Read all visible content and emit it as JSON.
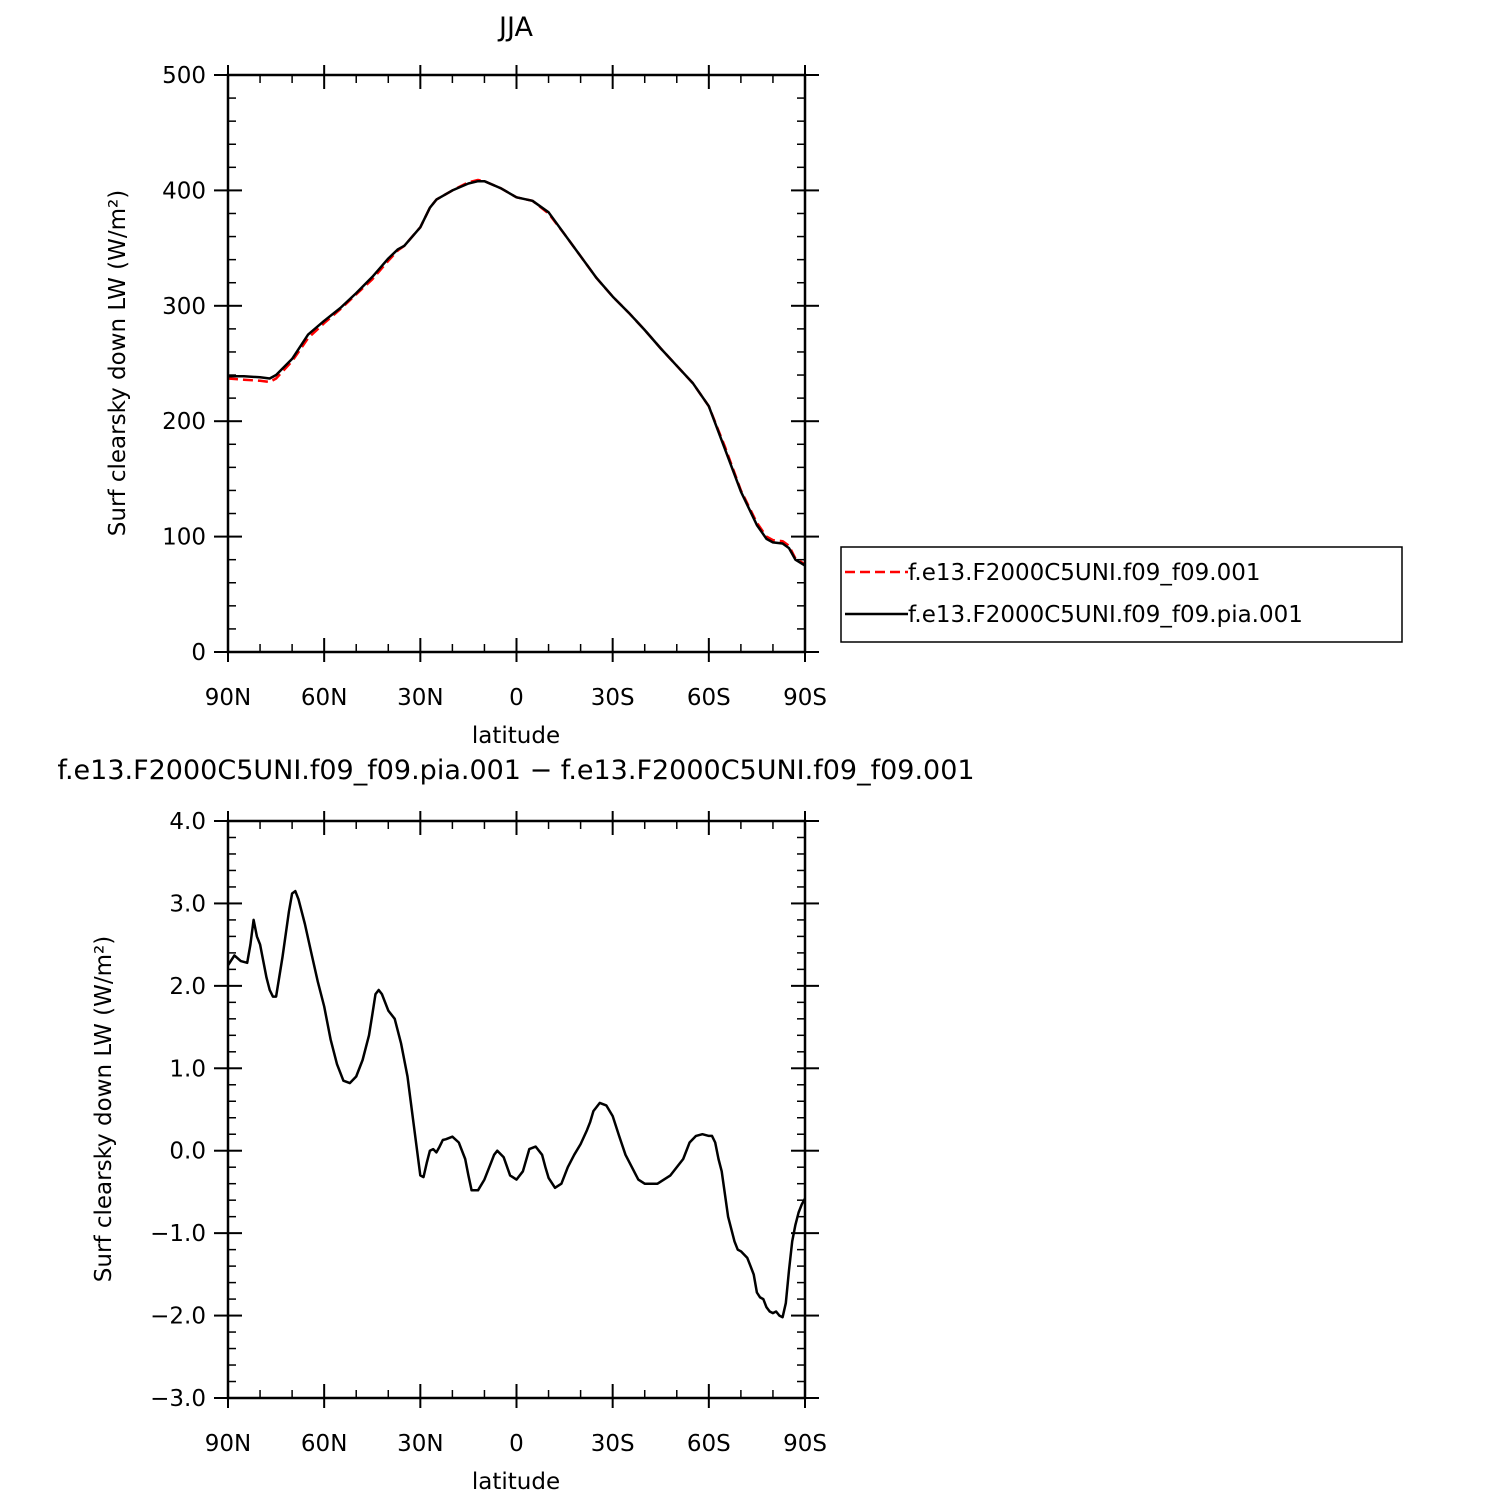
{
  "chart_data": [
    {
      "type": "line",
      "title": "JJA",
      "xlabel": "latitude",
      "ylabel": "Surf clearsky down LW (W/m²)",
      "xlim": [
        90,
        -90
      ],
      "ylim": [
        0,
        500
      ],
      "xticks": [
        90,
        60,
        30,
        0,
        -30,
        -60,
        -90
      ],
      "xtick_labels": [
        "90N",
        "60N",
        "30N",
        "0",
        "30S",
        "60S",
        "90S"
      ],
      "yticks": [
        0,
        100,
        200,
        300,
        400,
        500
      ],
      "ytick_labels": [
        "0",
        "100",
        "200",
        "300",
        "400",
        "500"
      ],
      "legend_position": "right",
      "series": [
        {
          "name": "f.e13.F2000C5UNI.f09_f09.001",
          "color": "#ff0000",
          "style": "dashed",
          "x": [
            90,
            85,
            80,
            77,
            75,
            70,
            65,
            60,
            55,
            50,
            45,
            40,
            37,
            35,
            30,
            27,
            25,
            20,
            15,
            12,
            10,
            5,
            0,
            -5,
            -10,
            -15,
            -20,
            -25,
            -30,
            -35,
            -40,
            -45,
            -50,
            -55,
            -60,
            -65,
            -70,
            -75,
            -78,
            -80,
            -83,
            -85,
            -87,
            -90
          ],
          "values": [
            237,
            236,
            235,
            234,
            237,
            252,
            272,
            285,
            297,
            310,
            323,
            339,
            348,
            352,
            368,
            385,
            392,
            400,
            407,
            409,
            408,
            402,
            394,
            391,
            380,
            362,
            343,
            324,
            308,
            294,
            279,
            263,
            248,
            233,
            213,
            178,
            140,
            112,
            100,
            97,
            96,
            92,
            81,
            76
          ]
        },
        {
          "name": "f.e13.F2000C5UNI.f09_f09.pia.001",
          "color": "#000000",
          "style": "solid",
          "x": [
            90,
            85,
            80,
            77,
            75,
            70,
            65,
            60,
            55,
            50,
            45,
            40,
            37,
            35,
            30,
            27,
            25,
            20,
            15,
            12,
            10,
            5,
            0,
            -5,
            -10,
            -15,
            -20,
            -25,
            -30,
            -35,
            -40,
            -45,
            -50,
            -55,
            -60,
            -65,
            -70,
            -75,
            -78,
            -80,
            -83,
            -85,
            -87,
            -90
          ],
          "values": [
            239,
            239,
            238,
            237,
            240,
            254,
            275,
            287,
            298,
            311,
            325,
            341,
            349,
            352,
            368,
            385,
            392,
            400,
            406,
            408,
            408,
            402,
            394,
            391,
            381,
            362,
            343,
            324,
            308,
            294,
            279,
            263,
            248,
            233,
            213,
            176,
            139,
            110,
            98,
            95,
            94,
            90,
            80,
            75
          ]
        }
      ]
    },
    {
      "type": "line",
      "title": "f.e13.F2000C5UNI.f09_f09.pia.001 − f.e13.F2000C5UNI.f09_f09.001",
      "xlabel": "latitude",
      "ylabel": "Surf clearsky down LW (W/m²)",
      "xlim": [
        90,
        -90
      ],
      "ylim": [
        -3.0,
        4.0
      ],
      "xticks": [
        90,
        60,
        30,
        0,
        -30,
        -60,
        -90
      ],
      "xtick_labels": [
        "90N",
        "60N",
        "30N",
        "0",
        "30S",
        "60S",
        "90S"
      ],
      "yticks": [
        -3.0,
        -2.0,
        -1.0,
        0.0,
        1.0,
        2.0,
        3.0,
        4.0
      ],
      "ytick_labels": [
        "−3.0",
        "−2.0",
        "−1.0",
        "0.0",
        "1.0",
        "2.0",
        "3.0",
        "4.0"
      ],
      "series": [
        {
          "color": "#000000",
          "style": "solid",
          "x": [
            90,
            88,
            86,
            84,
            83,
            82,
            81,
            80,
            79,
            78,
            77,
            76,
            75,
            73,
            71,
            70,
            69,
            68,
            66,
            64,
            62,
            60,
            58,
            56,
            54,
            52,
            50,
            48,
            46,
            45,
            44,
            43,
            42,
            40,
            38,
            36,
            34,
            33,
            32,
            30,
            29,
            28,
            27,
            26,
            25,
            24,
            23,
            22,
            20,
            18,
            16,
            15,
            14,
            12,
            10,
            8,
            7,
            6,
            4,
            2,
            0,
            -2,
            -4,
            -6,
            -8,
            -9,
            -10,
            -12,
            -14,
            -16,
            -18,
            -20,
            -22,
            -23,
            -24,
            -26,
            -28,
            -30,
            -32,
            -34,
            -36,
            -38,
            -40,
            -44,
            -48,
            -52,
            -54,
            -56,
            -58,
            -60,
            -61,
            -62,
            -63,
            -64,
            -66,
            -68,
            -69,
            -70,
            -72,
            -73,
            -74,
            -75,
            -76,
            -77,
            -78,
            -79,
            -80,
            -81,
            -82,
            -83,
            -84,
            -85,
            -86,
            -87,
            -88,
            -89,
            -90
          ],
          "values": [
            2.25,
            2.37,
            2.3,
            2.28,
            2.5,
            2.8,
            2.6,
            2.5,
            2.3,
            2.1,
            1.95,
            1.87,
            1.87,
            2.35,
            2.9,
            3.12,
            3.15,
            3.05,
            2.75,
            2.4,
            2.05,
            1.75,
            1.35,
            1.05,
            0.85,
            0.82,
            0.9,
            1.1,
            1.4,
            1.65,
            1.9,
            1.95,
            1.9,
            1.7,
            1.6,
            1.3,
            0.9,
            0.6,
            0.3,
            -0.3,
            -0.32,
            -0.15,
            0.0,
            0.02,
            -0.02,
            0.05,
            0.13,
            0.14,
            0.17,
            0.1,
            -0.1,
            -0.3,
            -0.48,
            -0.48,
            -0.35,
            -0.15,
            -0.05,
            0.0,
            -0.08,
            -0.3,
            -0.35,
            -0.25,
            0.02,
            0.05,
            -0.05,
            -0.2,
            -0.33,
            -0.45,
            -0.4,
            -0.2,
            -0.05,
            0.08,
            0.25,
            0.35,
            0.48,
            0.58,
            0.55,
            0.42,
            0.18,
            -0.05,
            -0.2,
            -0.35,
            -0.4,
            -0.4,
            -0.3,
            -0.1,
            0.1,
            0.18,
            0.2,
            0.18,
            0.18,
            0.1,
            -0.1,
            -0.25,
            -0.8,
            -1.1,
            -1.2,
            -1.22,
            -1.3,
            -1.4,
            -1.5,
            -1.72,
            -1.78,
            -1.8,
            -1.9,
            -1.95,
            -1.97,
            -1.95,
            -2.0,
            -2.02,
            -1.85,
            -1.45,
            -1.1,
            -0.9,
            -0.75,
            -0.65,
            -0.58
          ]
        }
      ]
    }
  ]
}
